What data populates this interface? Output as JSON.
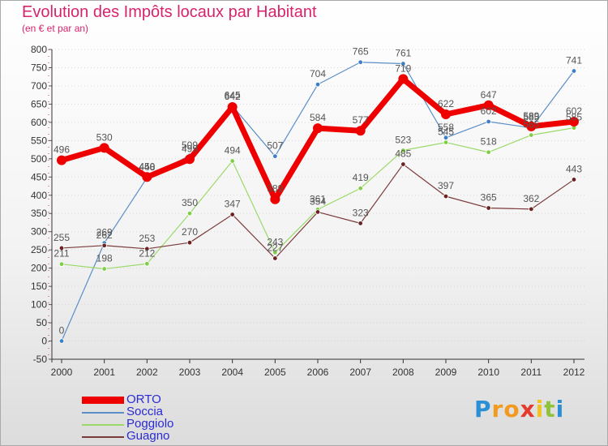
{
  "chart_data": {
    "type": "line",
    "title": "Evolution des Impôts locaux par Habitant",
    "subtitle": "(en € et par an)",
    "categories": [
      "2000",
      "2001",
      "2002",
      "2003",
      "2004",
      "2005",
      "2006",
      "2007",
      "2008",
      "2009",
      "2010",
      "2011",
      "2012"
    ],
    "ylim": [
      -50,
      800
    ],
    "yticks": [
      -50,
      0,
      50,
      100,
      150,
      200,
      250,
      300,
      350,
      400,
      450,
      500,
      550,
      600,
      650,
      700,
      750,
      800
    ],
    "grid": "horizontal dotted",
    "legend_position": "bottom-left",
    "series": [
      {
        "name": "Soccia",
        "color": "#5b8ec7",
        "point_color": "#3d7fc4",
        "width": 1.2,
        "marker": 2.8,
        "values": [
          0,
          269,
          448,
          509,
          645,
          507,
          704,
          765,
          761,
          558,
          602,
          585,
          741
        ]
      },
      {
        "name": "Poggiolo",
        "color": "#9bd96b",
        "point_color": "#7fcf45",
        "width": 1.2,
        "marker": 2.8,
        "values": [
          211,
          198,
          212,
          350,
          494,
          243,
          361,
          419,
          523,
          545,
          518,
          565,
          585
        ]
      },
      {
        "name": "Guagno",
        "color": "#7a3a3a",
        "point_color": "#6b2222",
        "width": 1.2,
        "marker": 2.8,
        "values": [
          255,
          262,
          253,
          270,
          347,
          227,
          354,
          323,
          485,
          397,
          365,
          362,
          443
        ]
      },
      {
        "name": "ORTO",
        "color": "#ee0000",
        "point_color": "#ee0000",
        "width": 7,
        "marker": 6,
        "values": [
          496,
          530,
          450,
          499,
          642,
          389,
          584,
          577,
          719,
          622,
          647,
          589,
          602
        ]
      }
    ]
  },
  "legend": [
    {
      "name": "ORTO",
      "color": "#ee0000"
    },
    {
      "name": "Soccia",
      "color": "#5b8ec7"
    },
    {
      "name": "Poggiolo",
      "color": "#9bd96b"
    },
    {
      "name": "Guagno",
      "color": "#7a3a3a"
    }
  ],
  "logo": {
    "letters": [
      "P",
      "r",
      "o",
      "x",
      "i",
      "t",
      "i"
    ],
    "colors": [
      "#2b8fd6",
      "#f29a1f",
      "#f29a1f",
      "#e53b2c",
      "#f2c21f",
      "#8fc43a",
      "#2b8fd6"
    ]
  }
}
